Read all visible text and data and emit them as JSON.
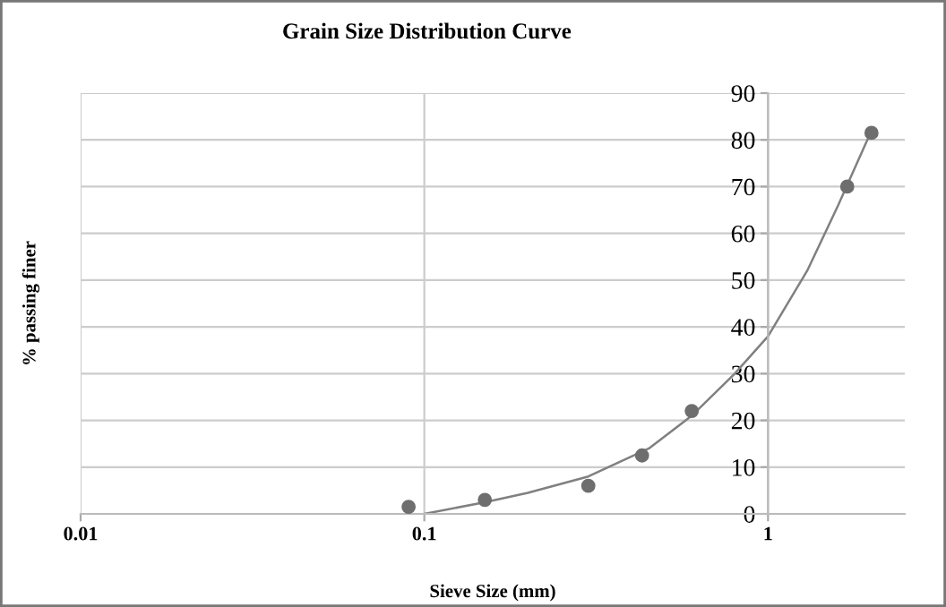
{
  "chart_data": {
    "type": "scatter",
    "title": "Grain Size Distribution Curve",
    "xlabel": "Sieve Size (mm)",
    "ylabel": "% passing finer",
    "log": "x",
    "xlim": [
      0.01,
      2.5
    ],
    "xticks": [
      0.01,
      0.1,
      1
    ],
    "ylim": [
      0,
      90
    ],
    "yticks": [
      0,
      10,
      20,
      30,
      40,
      50,
      60,
      70,
      80,
      90
    ],
    "grid": true,
    "marker": "circle",
    "series": [
      {
        "color": "#6e6e6e",
        "x": [
          0.09,
          0.15,
          0.3,
          0.43,
          0.6,
          1.7,
          2.0
        ],
        "values": [
          1.5,
          3,
          6,
          12.5,
          22,
          70,
          81.5
        ]
      },
      {
        "type": "line",
        "color": "#808080",
        "marker": "none",
        "x": [
          0.1,
          0.15,
          0.2,
          0.3,
          0.45,
          0.6,
          0.8,
          1.0,
          1.3,
          1.6,
          2.0
        ],
        "values": [
          0,
          2.5,
          4.5,
          8,
          14,
          21,
          30,
          38,
          52,
          66,
          82
        ]
      }
    ]
  }
}
